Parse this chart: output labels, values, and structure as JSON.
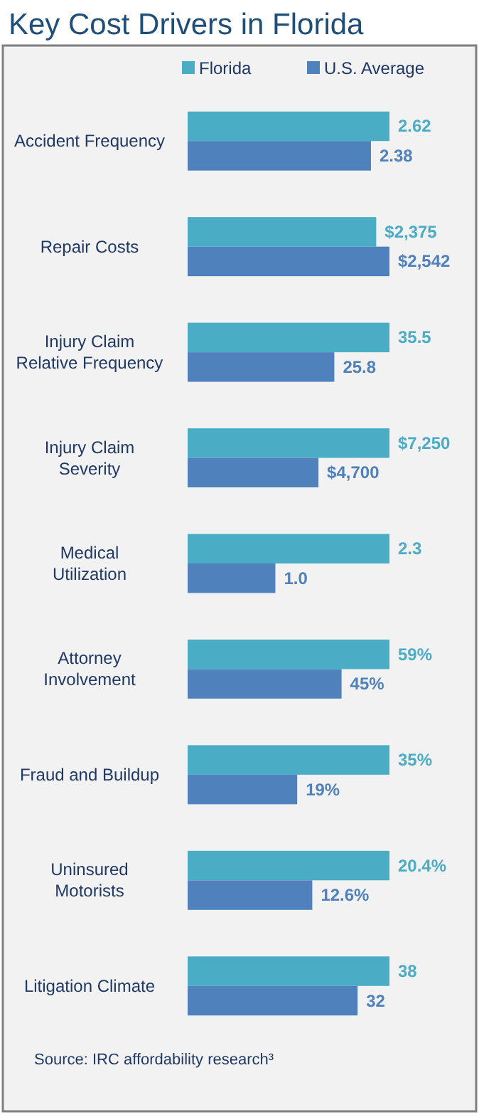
{
  "chart_data": [
    {
      "type": "bar",
      "orientation": "horizontal",
      "title": "Key Cost Drivers in Florida",
      "legend": "top",
      "categories": [
        "Accident Frequency"
      ],
      "series": [
        {
          "name": "Florida",
          "color": "#4bacc6",
          "values": [
            2.62
          ],
          "value_labels": [
            "2.62"
          ]
        },
        {
          "name": "U.S. Average",
          "color": "#4f81bd",
          "values": [
            2.38
          ],
          "value_labels": [
            "2.38"
          ]
        }
      ]
    },
    {
      "type": "bar",
      "orientation": "horizontal",
      "categories": [
        "Repair Costs"
      ],
      "series": [
        {
          "color": "#4bacc6",
          "values": [
            2375
          ],
          "value_labels": [
            "$2,375"
          ]
        },
        {
          "color": "#4f81bd",
          "values": [
            2542
          ],
          "value_labels": [
            "$2,542"
          ]
        }
      ]
    },
    {
      "type": "bar",
      "orientation": "horizontal",
      "categories": [
        "Injury Claim Relative Frequency"
      ],
      "series": [
        {
          "color": "#4bacc6",
          "values": [
            35.5
          ],
          "value_labels": [
            "35.5"
          ]
        },
        {
          "color": "#4f81bd",
          "values": [
            25.8
          ],
          "value_labels": [
            "25.8"
          ]
        }
      ]
    },
    {
      "type": "bar",
      "orientation": "horizontal",
      "categories": [
        "Injury Claim Severity"
      ],
      "series": [
        {
          "color": "#4bacc6",
          "values": [
            7250
          ],
          "value_labels": [
            "$7,250"
          ]
        },
        {
          "color": "#4f81bd",
          "values": [
            4700
          ],
          "value_labels": [
            "$4,700"
          ]
        }
      ]
    },
    {
      "type": "bar",
      "orientation": "horizontal",
      "categories": [
        "Medical Utilization"
      ],
      "series": [
        {
          "color": "#4bacc6",
          "values": [
            2.3
          ],
          "value_labels": [
            "2.3"
          ]
        },
        {
          "color": "#4f81bd",
          "values": [
            1.0
          ],
          "value_labels": [
            "1.0"
          ]
        }
      ]
    },
    {
      "type": "bar",
      "orientation": "horizontal",
      "categories": [
        "Attorney Involvement"
      ],
      "series": [
        {
          "color": "#4bacc6",
          "values": [
            59
          ],
          "value_labels": [
            "59%"
          ]
        },
        {
          "color": "#4f81bd",
          "values": [
            45
          ],
          "value_labels": [
            "45%"
          ]
        }
      ]
    },
    {
      "type": "bar",
      "orientation": "horizontal",
      "categories": [
        "Fraud and Buildup"
      ],
      "series": [
        {
          "color": "#4bacc6",
          "values": [
            35
          ],
          "value_labels": [
            "35%"
          ]
        },
        {
          "color": "#4f81bd",
          "values": [
            19
          ],
          "value_labels": [
            "19%"
          ]
        }
      ]
    },
    {
      "type": "bar",
      "orientation": "horizontal",
      "categories": [
        "Uninsured Motorists"
      ],
      "series": [
        {
          "color": "#4bacc6",
          "values": [
            20.4
          ],
          "value_labels": [
            "20.4%"
          ]
        },
        {
          "color": "#4f81bd",
          "values": [
            12.6
          ],
          "value_labels": [
            "12.6%"
          ]
        }
      ]
    },
    {
      "type": "bar",
      "orientation": "horizontal",
      "categories": [
        "Litigation Climate"
      ],
      "annotations": [
        "Source: IRC affordability research³"
      ],
      "series": [
        {
          "color": "#4bacc6",
          "values": [
            38
          ],
          "value_labels": [
            "38"
          ]
        },
        {
          "color": "#4f81bd",
          "values": [
            32
          ],
          "value_labels": [
            "32"
          ]
        }
      ]
    }
  ]
}
